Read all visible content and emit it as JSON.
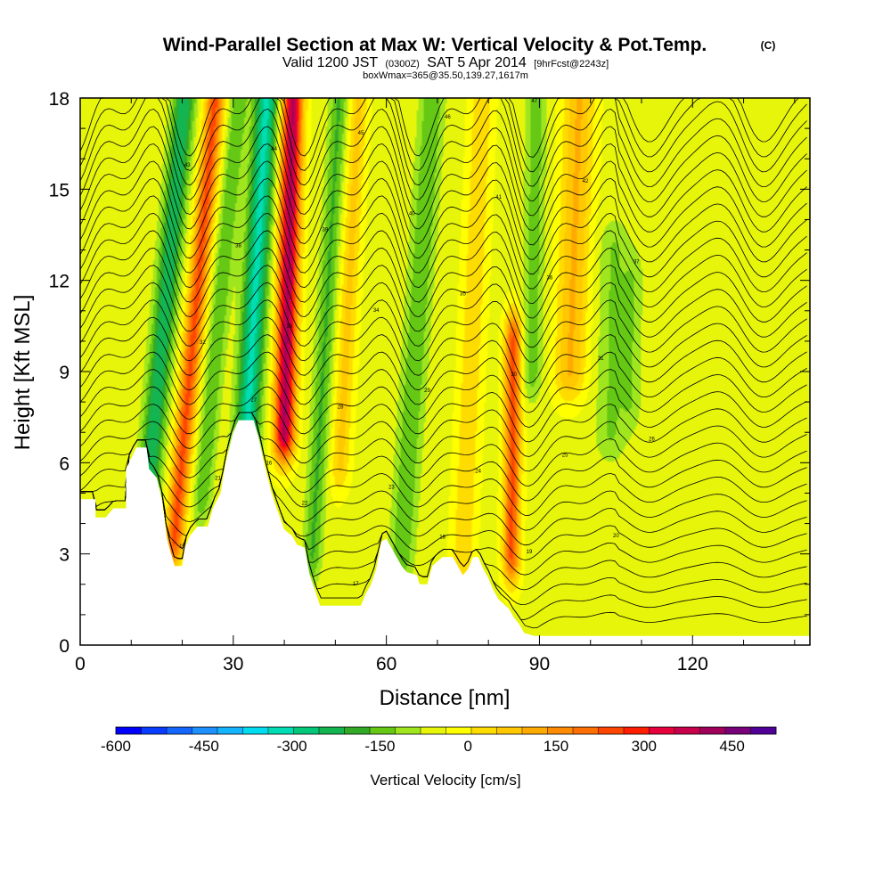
{
  "chart_data": {
    "type": "heatmap",
    "title": "Wind-Parallel Section at Max W: Vertical Velocity & Pot.Temp.",
    "title_tag": "(C)",
    "subtitle_valid": "Valid 1200 JST",
    "subtitle_z": "(0300Z)",
    "subtitle_date": "SAT 5 Apr 2014",
    "subtitle_fcst": "[9hrFcst@2243z]",
    "box_note": "boxWmax=365@35.50,139.27,1617m",
    "xlabel": "Distance [nm]",
    "ylabel": "Height [Kft MSL]",
    "xlim": [
      0,
      143
    ],
    "ylim": [
      0,
      18
    ],
    "xticks": [
      0,
      30,
      60,
      90,
      120
    ],
    "yticks": [
      0,
      3,
      6,
      9,
      12,
      15,
      18
    ],
    "colorbar": {
      "label": "Vertical Velocity [cm/s]",
      "range": [
        -600,
        525
      ],
      "step": 50,
      "tick_values": [
        -600,
        -450,
        -300,
        -150,
        0,
        150,
        300,
        450
      ],
      "tick_labels": [
        "-600",
        "-450",
        "-300",
        "-150",
        "0",
        "150",
        "300",
        "450"
      ],
      "colors": [
        "#0000ff",
        "#0a3cff",
        "#1466ff",
        "#1e90ff",
        "#14b4ff",
        "#00dcf0",
        "#00dcb4",
        "#00c878",
        "#14b450",
        "#32aa28",
        "#64c814",
        "#a0e61e",
        "#e6f50a",
        "#ffff00",
        "#ffdc00",
        "#ffc800",
        "#ffaa00",
        "#ff8c00",
        "#ff6e00",
        "#ff4600",
        "#ff1e00",
        "#e6003c",
        "#c8004b",
        "#a0005a",
        "#780078",
        "#500096"
      ]
    },
    "field": {
      "description_units": "vertical velocity cm/s; potential temperature contours (C)",
      "w_features": [
        {
          "x": 13,
          "y0": 4.5,
          "y1": 18,
          "tilt": 0.55,
          "width": 2.2,
          "amp": -230
        },
        {
          "x": 18.5,
          "y0": 3.5,
          "y1": 18,
          "tilt": 0.55,
          "width": 1.8,
          "amp": 330
        },
        {
          "x": 24,
          "y0": 5,
          "y1": 18,
          "tilt": 0.55,
          "width": 1.8,
          "amp": -130
        },
        {
          "x": 32.5,
          "y0": 6.5,
          "y1": 18,
          "tilt": 0.35,
          "width": 2.4,
          "amp": -300
        },
        {
          "x": 40,
          "y0": 7,
          "y1": 18,
          "tilt": 0.15,
          "width": 2.0,
          "amp": 520
        },
        {
          "x": 45.5,
          "y0": 3,
          "y1": 18,
          "tilt": 0.35,
          "width": 1.8,
          "amp": -140
        },
        {
          "x": 51,
          "y0": 6,
          "y1": 18,
          "tilt": 0.3,
          "width": 1.8,
          "amp": 130
        },
        {
          "x": 63,
          "y0": 3,
          "y1": 18,
          "tilt": 0.4,
          "width": 2.4,
          "amp": -130
        },
        {
          "x": 75,
          "y0": 3,
          "y1": 18,
          "tilt": 0.25,
          "width": 2.2,
          "amp": 110
        },
        {
          "x": 84.5,
          "y0": 3,
          "y1": 10,
          "tilt": 0.05,
          "width": 1.6,
          "amp": 330
        },
        {
          "x": 88.5,
          "y0": 9,
          "y1": 18,
          "tilt": 0.1,
          "width": 2.0,
          "amp": -110
        },
        {
          "x": 96,
          "y0": 9,
          "y1": 18,
          "tilt": 0.2,
          "width": 3.0,
          "amp": 170
        },
        {
          "x": 104,
          "y0": 7,
          "y1": 13,
          "tilt": 0.1,
          "width": 3.0,
          "amp": -90
        },
        {
          "x": 108,
          "y0": 8,
          "y1": 12,
          "tilt": 0.1,
          "width": 2.0,
          "amp": -70
        }
      ]
    },
    "terrain": [
      [
        0,
        4.8
      ],
      [
        3,
        4.8
      ],
      [
        3,
        4.2
      ],
      [
        5,
        4.2
      ],
      [
        6.5,
        4.5
      ],
      [
        9,
        4.5
      ],
      [
        9,
        5.8
      ],
      [
        11,
        6.5
      ],
      [
        13,
        6.5
      ],
      [
        13.5,
        5.8
      ],
      [
        15,
        5.5
      ],
      [
        16,
        4.8
      ],
      [
        17,
        3.5
      ],
      [
        18.5,
        2.6
      ],
      [
        20,
        2.6
      ],
      [
        20.5,
        3.2
      ],
      [
        21.5,
        3.6
      ],
      [
        23,
        3.9
      ],
      [
        25,
        3.9
      ],
      [
        26,
        4.5
      ],
      [
        27.5,
        5.0
      ],
      [
        28.5,
        6.0
      ],
      [
        30,
        7.0
      ],
      [
        31,
        7.4
      ],
      [
        34,
        7.4
      ],
      [
        35,
        6.8
      ],
      [
        36,
        6.0
      ],
      [
        37.5,
        5.0
      ],
      [
        38.5,
        4.5
      ],
      [
        40,
        3.8
      ],
      [
        41.5,
        3.6
      ],
      [
        42.5,
        3.3
      ],
      [
        44,
        3.2
      ],
      [
        45,
        2.3
      ],
      [
        46,
        1.8
      ],
      [
        47,
        1.3
      ],
      [
        55,
        1.3
      ],
      [
        56,
        1.7
      ],
      [
        57,
        2.0
      ],
      [
        58,
        2.5
      ],
      [
        59,
        3.4
      ],
      [
        60,
        3.5
      ],
      [
        61,
        3.2
      ],
      [
        62,
        2.9
      ],
      [
        63,
        2.6
      ],
      [
        64,
        2.4
      ],
      [
        66,
        2.3
      ],
      [
        66.5,
        2.0
      ],
      [
        68,
        2.0
      ],
      [
        69,
        2.6
      ],
      [
        71,
        2.9
      ],
      [
        73,
        2.9
      ],
      [
        74,
        2.6
      ],
      [
        75,
        2.3
      ],
      [
        76,
        2.5
      ],
      [
        77,
        2.9
      ],
      [
        78,
        2.9
      ],
      [
        79,
        2.5
      ],
      [
        80,
        2.2
      ],
      [
        81,
        1.8
      ],
      [
        82,
        1.5
      ],
      [
        84,
        1.2
      ],
      [
        85,
        0.9
      ],
      [
        86,
        0.7
      ],
      [
        87,
        0.4
      ],
      [
        89,
        0.3
      ],
      [
        143,
        0.3
      ]
    ],
    "theta_label_samples": [
      "15",
      "16",
      "17",
      "18",
      "19",
      "20",
      "21",
      "22",
      "23",
      "24",
      "25",
      "26",
      "27",
      "28",
      "29",
      "30",
      "31",
      "32",
      "33",
      "34",
      "35",
      "36",
      "37",
      "38",
      "39",
      "40",
      "41",
      "42",
      "43",
      "44",
      "45",
      "46",
      "47"
    ]
  }
}
